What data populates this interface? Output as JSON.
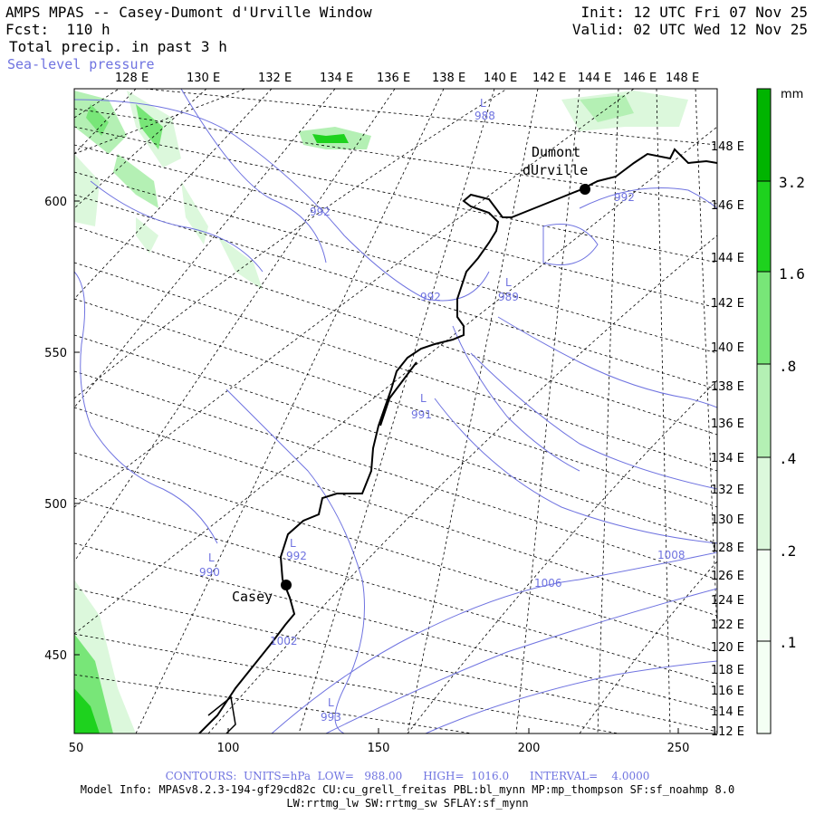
{
  "header": {
    "title": "AMPS MPAS -- Casey-Dumont d'Urville Window",
    "forecast": "Fcst:  110 h",
    "field": "Total precip. in past 3 h",
    "overlay": "Sea-level pressure",
    "init": "Init: 12 UTC Fri 07 Nov 25",
    "valid": "Valid: 02 UTC Wed 12 Nov 25"
  },
  "map": {
    "top_lon_labels": [
      "128 E",
      "130 E",
      "132 E",
      "134 E",
      "136 E",
      "138 E",
      "140 E",
      "142 E",
      "144 E",
      "146 E",
      "148 E"
    ],
    "right_lon_labels": [
      "148 E",
      "146 E",
      "144 E",
      "142 E",
      "140 E",
      "138 E",
      "136 E",
      "134 E",
      "132 E",
      "130 E",
      "128 E",
      "126 E",
      "124 E",
      "122 E",
      "120 E",
      "118 E",
      "116 E",
      "114 E",
      "112 E"
    ],
    "left_y_labels": [
      "600",
      "550",
      "500",
      "450"
    ],
    "bottom_x_labels": [
      "50",
      "100",
      "150",
      "200",
      "250"
    ],
    "stations": [
      {
        "name": "Casey"
      },
      {
        "name": "Dumont"
      },
      {
        "name": "dUrville"
      }
    ],
    "pressure_labels": [
      "992",
      "992",
      "L",
      "989",
      "L",
      "991",
      "L",
      "992",
      "L",
      "990",
      "1002",
      "L",
      "993",
      "1006",
      "1008",
      "L",
      "988",
      "992"
    ]
  },
  "colorbar": {
    "unit": "mm",
    "labels": [
      "3.2",
      "1.6",
      ".8",
      ".4",
      ".2",
      ".1"
    ],
    "colors": [
      "#00b400",
      "#1ed21e",
      "#78e678",
      "#b4f0b4",
      "#dcf8dc",
      "#f4fff4"
    ]
  },
  "footer": {
    "contours": "CONTOURS:  UNITS=hPa  LOW=   988.00      HIGH=  1016.0      INTERVAL=    4.0000",
    "model_info": "Model Info: MPASv8.2.3-194-gf29cd82c CU:cu_grell_freitas PBL:bl_mynn MP:mp_thompson SF:sf_noahmp 8.0",
    "schemes": "LW:rrtmg_lw SW:rrtmg_sw SFLAY:sf_mynn"
  }
}
